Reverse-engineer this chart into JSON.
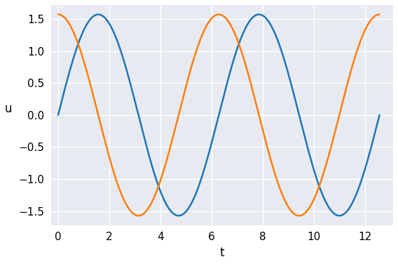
{
  "t_points": 1000,
  "amplitude": 1.5707963267948966,
  "blue_color": "#1f77b4",
  "orange_color": "#ff7f0e",
  "xlabel": "t",
  "ylabel": "u",
  "xlabel_fontsize": 12,
  "ylabel_fontsize": 12,
  "tick_fontsize": 11,
  "xticks": [
    0,
    2,
    4,
    6,
    8,
    10,
    12
  ],
  "yticks": [
    -1.5,
    -1.0,
    -0.5,
    0.0,
    0.5,
    1.0,
    1.5
  ],
  "ylim": [
    -1.72,
    1.72
  ],
  "xlim": [
    -0.28,
    13.1
  ],
  "axes_background": "#e8eaf2",
  "outer_background": "#ffffff",
  "grid_color": "#ffffff",
  "linewidth": 1.8
}
